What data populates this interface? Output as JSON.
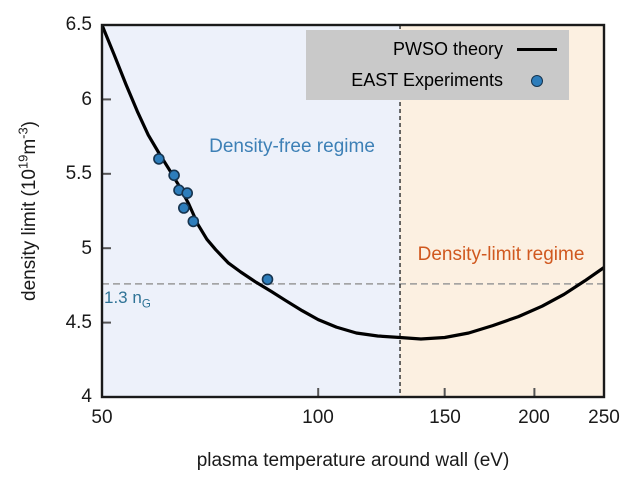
{
  "chart_data": {
    "type": "line",
    "title": "",
    "xlabel": "plasma temperature around wall (eV)",
    "ylabel_parts": {
      "prefix": "density limit (10",
      "sup1": "19",
      "mid": "m",
      "sup2": "-3",
      "suffix": ")"
    },
    "x_scale": "log",
    "xlim": [
      50,
      250
    ],
    "ylim": [
      4,
      6.5
    ],
    "grid": false,
    "x_ticks": [
      "50",
      "100",
      "150",
      "200",
      "250"
    ],
    "x_tick_values": [
      50,
      100,
      150,
      200,
      250
    ],
    "y_ticks": [
      "6.5",
      "6",
      "5.5",
      "5",
      "4.5",
      "4"
    ],
    "y_tick_values": [
      6.5,
      6,
      5.5,
      5,
      4.5,
      4
    ],
    "series": [
      {
        "name": "PWSO theory",
        "type": "line",
        "color": "#000000",
        "points": [
          [
            50,
            6.5
          ],
          [
            52,
            6.3
          ],
          [
            54,
            6.1
          ],
          [
            56,
            5.92
          ],
          [
            58,
            5.76
          ],
          [
            60,
            5.64
          ],
          [
            62,
            5.53
          ],
          [
            64,
            5.42
          ],
          [
            66,
            5.3
          ],
          [
            68,
            5.16
          ],
          [
            70,
            5.06
          ],
          [
            72,
            4.99
          ],
          [
            75,
            4.9
          ],
          [
            78,
            4.84
          ],
          [
            82,
            4.77
          ],
          [
            86,
            4.71
          ],
          [
            90,
            4.65
          ],
          [
            95,
            4.58
          ],
          [
            100,
            4.52
          ],
          [
            106,
            4.47
          ],
          [
            113,
            4.43
          ],
          [
            121,
            4.41
          ],
          [
            130,
            4.4
          ],
          [
            139,
            4.39
          ],
          [
            150,
            4.4
          ],
          [
            162,
            4.43
          ],
          [
            175,
            4.48
          ],
          [
            190,
            4.54
          ],
          [
            205,
            4.61
          ],
          [
            220,
            4.69
          ],
          [
            235,
            4.78
          ],
          [
            250,
            4.87
          ]
        ]
      },
      {
        "name": "EAST Experiments",
        "type": "scatter",
        "color": "#2d7dbb",
        "edge_color": "#16344f",
        "points": [
          [
            60,
            5.6
          ],
          [
            63,
            5.49
          ],
          [
            64,
            5.39
          ],
          [
            65.7,
            5.37
          ],
          [
            65,
            5.27
          ],
          [
            67,
            5.18
          ],
          [
            85,
            4.79
          ]
        ]
      }
    ],
    "annotations": {
      "hline": {
        "value": 4.76,
        "color": "#999999",
        "label_main": "1.3 n",
        "label_sub": "G"
      },
      "vline": {
        "value": 130,
        "color": "#3a3a3a"
      },
      "regions": [
        {
          "label": "Density-free regime",
          "from": 50,
          "to": 130,
          "fill": "#edf1fa",
          "text_color": "#3d80b6"
        },
        {
          "label": "Density-limit regime",
          "from": 130,
          "to": 250,
          "fill": "#fcf0e1",
          "text_color": "#d0581f"
        }
      ]
    },
    "legend": {
      "position": "top-right",
      "background": "#c9c9c9",
      "entries": [
        {
          "label": "PWSO theory",
          "marker": "line"
        },
        {
          "label": "EAST Experiments",
          "marker": "dot"
        }
      ]
    }
  }
}
